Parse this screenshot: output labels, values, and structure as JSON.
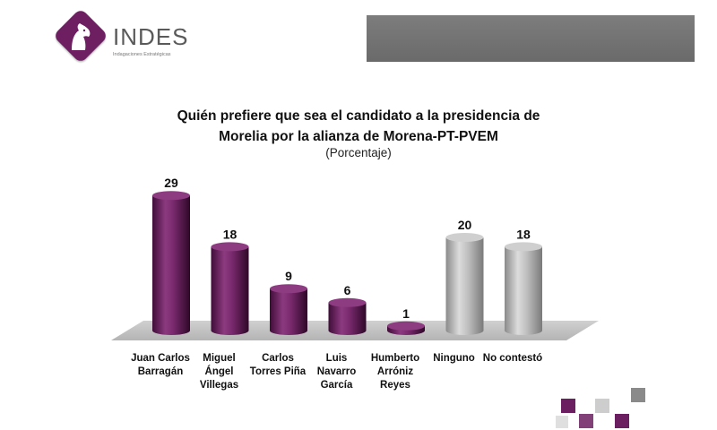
{
  "brand": {
    "name": "INDES",
    "tagline": "Indagaciones Estratégicas"
  },
  "chart_data": {
    "type": "bar",
    "title_line1": "Quién prefiere que sea el candidato a la presidencia de",
    "title_line2": "Morelia por la alianza de Morena-PT-PVEM",
    "subtitle": "(Porcentaje)",
    "categories": [
      "Juan Carlos Barragán",
      "Miguel Ángel Villegas",
      "Carlos Torres Piña",
      "Luis Navarro García",
      "Humberto Arróniz Reyes",
      "Ninguno",
      "No contestó"
    ],
    "category_labels": [
      "Juan Carlos\nBarragán",
      "Miguel\nÁngel\nVillegas",
      "Carlos\nTorres Piña",
      "Luis\nNavarro\nGarcía",
      "Humberto\nArróniz\nReyes",
      "Ninguno",
      "No contestó"
    ],
    "values": [
      29,
      18,
      9,
      6,
      1,
      20,
      18
    ],
    "colors": [
      "#6b1f60",
      "#6b1f60",
      "#6b1f60",
      "#6b1f60",
      "#6b1f60",
      "#a8a8a8",
      "#a8a8a8"
    ],
    "ylim": [
      0,
      30
    ],
    "grid": false,
    "legend": "none"
  },
  "colors": {
    "accent": "#6b1f60",
    "neutral": "#a8a8a8",
    "banner": "#737373"
  }
}
